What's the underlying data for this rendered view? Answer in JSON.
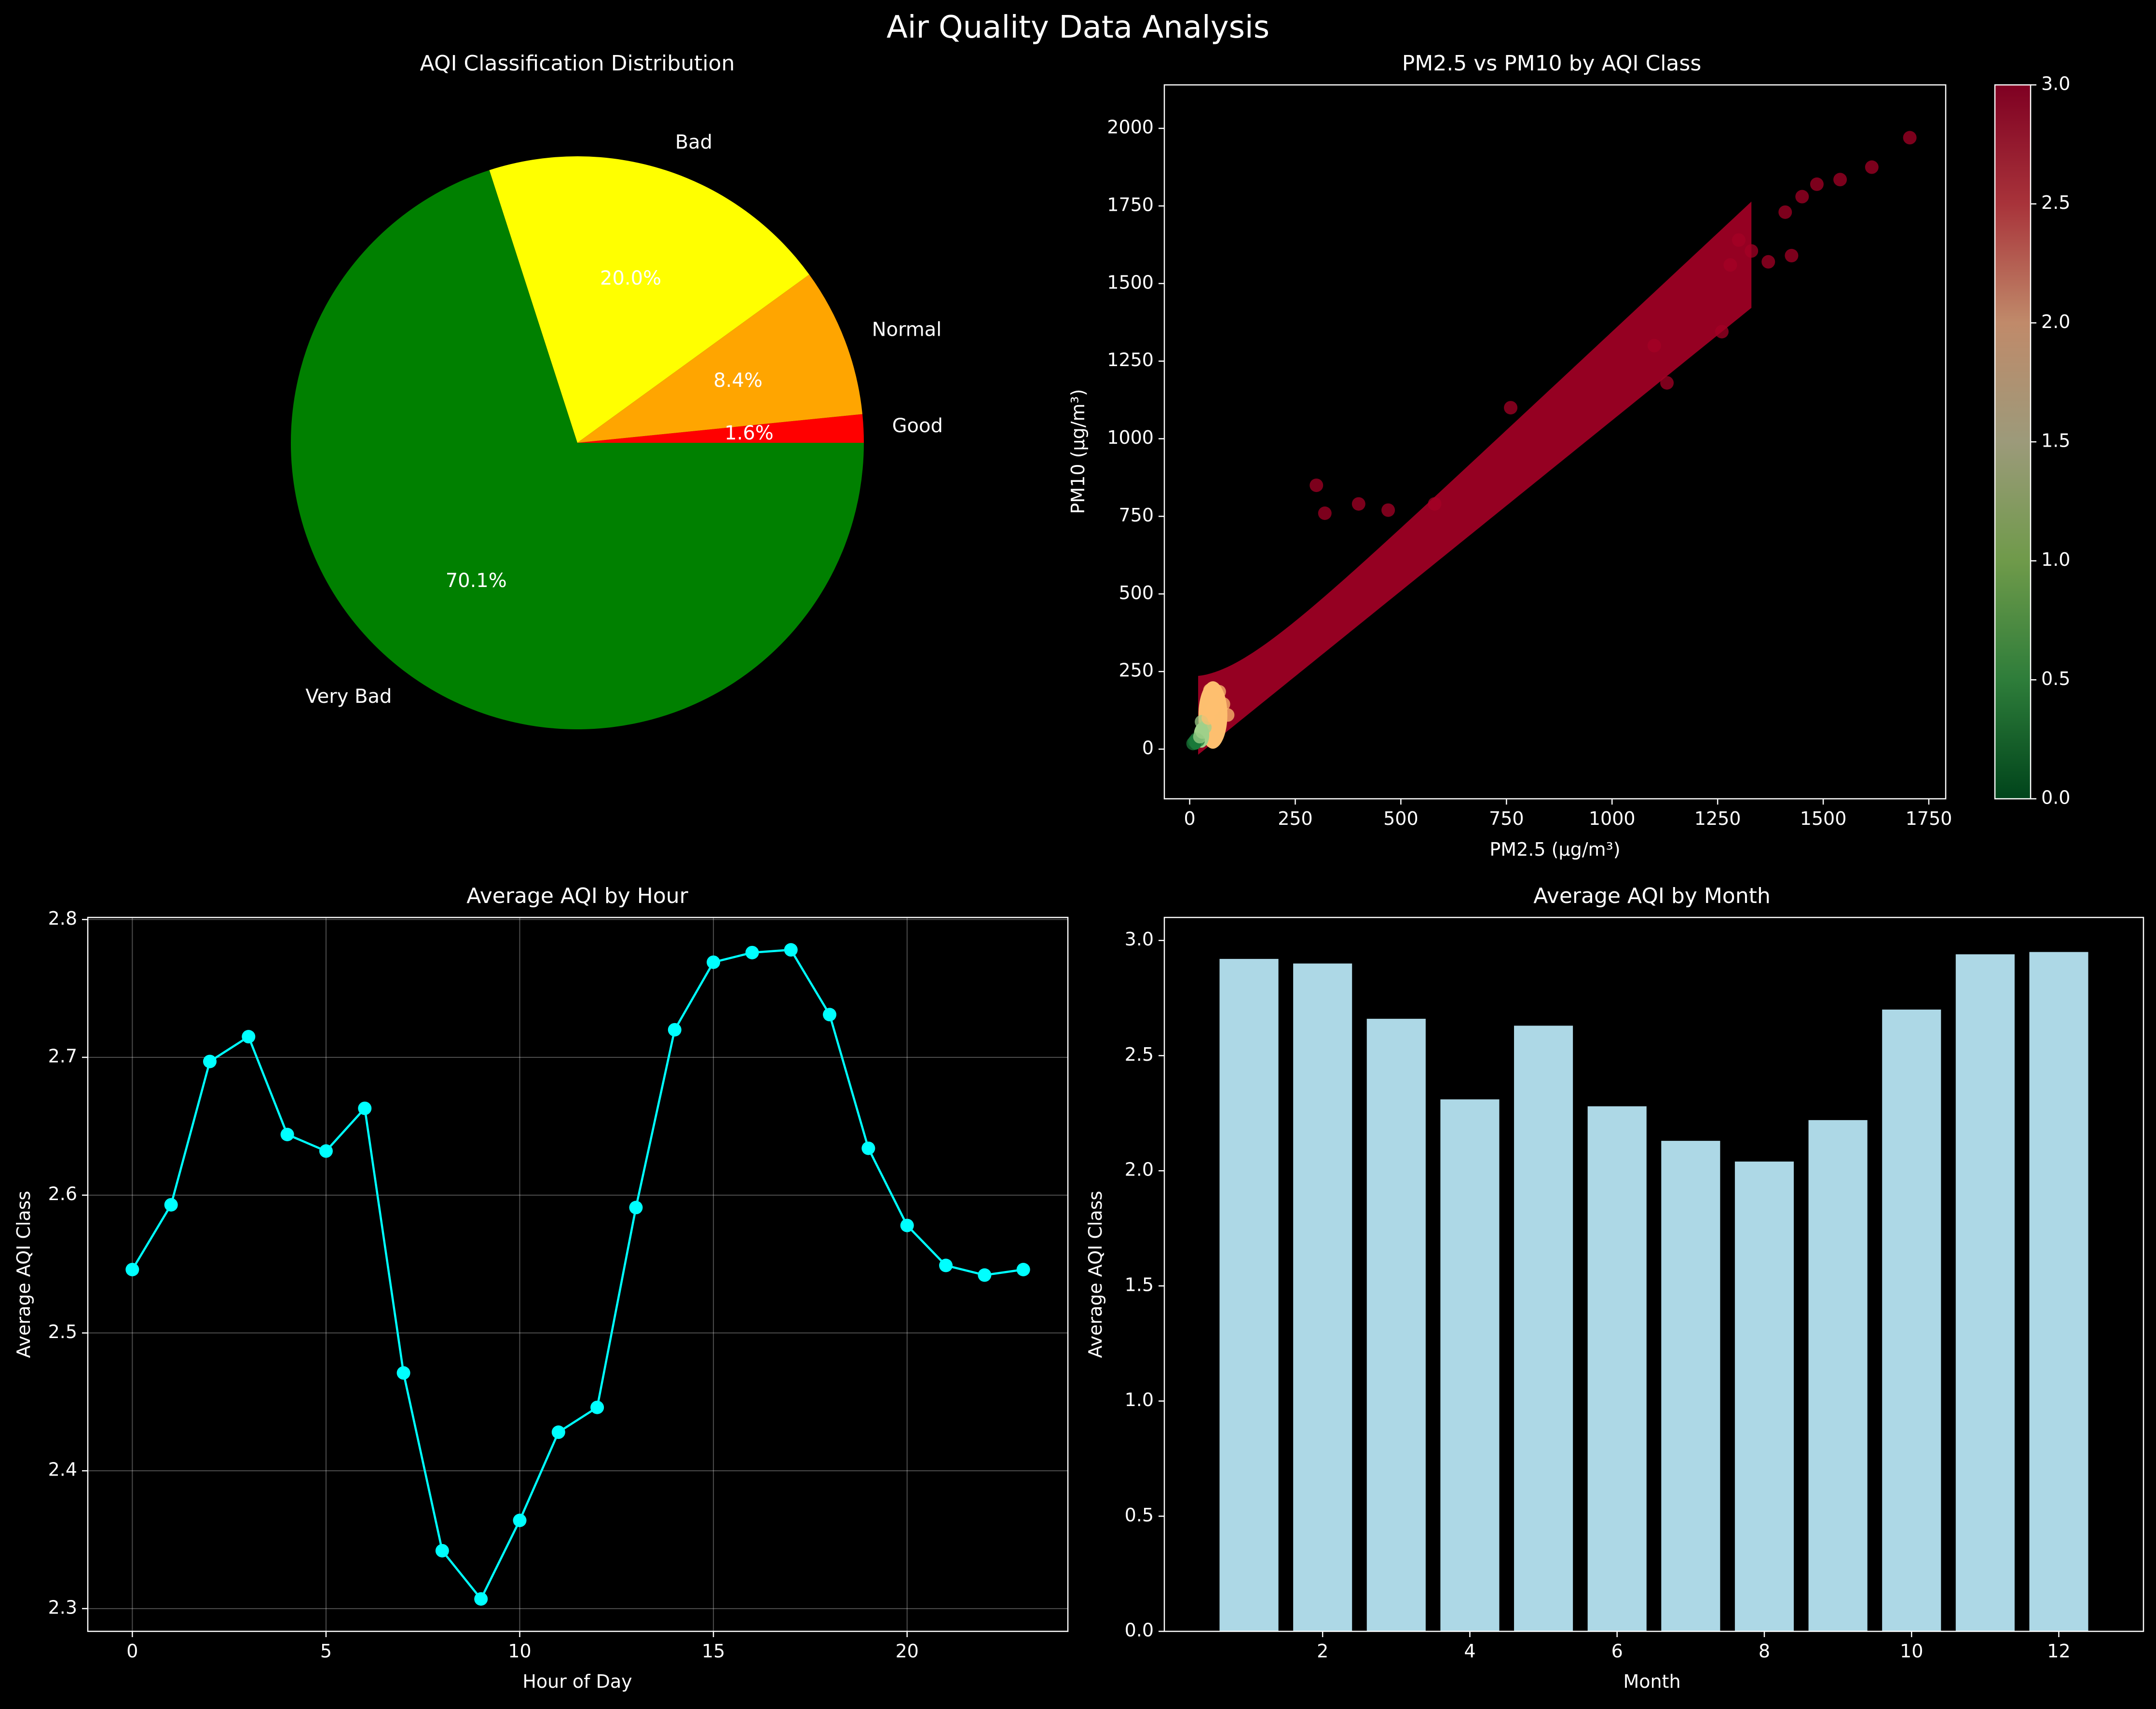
{
  "figure": {
    "title": "Air Quality Data Analysis",
    "background": "#000000",
    "foreground": "#ffffff"
  },
  "chart_data": [
    {
      "type": "pie",
      "title": "AQI Classification Distribution",
      "labels": [
        "Good",
        "Normal",
        "Bad",
        "Very Bad"
      ],
      "values": [
        1.6,
        8.4,
        20.0,
        70.1
      ],
      "pct_labels": [
        "1.6%",
        "8.4%",
        "20.0%",
        "70.1%"
      ],
      "colors": [
        "#ff0000",
        "#ffa500",
        "#ffff00",
        "#008000"
      ]
    },
    {
      "type": "scatter",
      "title": "PM2.5 vs PM10 by AQI Class",
      "xlabel": "PM2.5 (µg/m³)",
      "ylabel": "PM10 (µg/m³)",
      "xlim": [
        -60,
        1790
      ],
      "ylim": [
        -160,
        2140
      ],
      "xticks": [
        0,
        250,
        500,
        750,
        1000,
        1250,
        1500,
        1750
      ],
      "yticks": [
        0,
        250,
        500,
        750,
        1000,
        1250,
        1500,
        1750,
        2000
      ],
      "colorbar": {
        "range": [
          0,
          3
        ],
        "ticks": [
          "0.0",
          "0.5",
          "1.0",
          "1.5",
          "2.0",
          "2.5",
          "3.0"
        ],
        "colors": [
          "#00441b",
          "#2e7d3a",
          "#6f9a4a",
          "#9c9a7a",
          "#c08a6a",
          "#a8333a",
          "#7f0022"
        ]
      },
      "class_colors": {
        "0": "#1a7a3a",
        "1": "#9fd08a",
        "2": "#fdbf6f",
        "3": "#a50026"
      },
      "trend": {
        "slope": 1.18,
        "intercept": 25
      },
      "points": [
        {
          "x": 8,
          "y": 18,
          "c": 0
        },
        {
          "x": 12,
          "y": 25,
          "c": 0
        },
        {
          "x": 16,
          "y": 32,
          "c": 0
        },
        {
          "x": 20,
          "y": 28,
          "c": 0
        },
        {
          "x": 24,
          "y": 40,
          "c": 1
        },
        {
          "x": 30,
          "y": 55,
          "c": 1
        },
        {
          "x": 36,
          "y": 70,
          "c": 1
        },
        {
          "x": 28,
          "y": 88,
          "c": 1
        },
        {
          "x": 44,
          "y": 100,
          "c": 2
        },
        {
          "x": 55,
          "y": 130,
          "c": 2
        },
        {
          "x": 62,
          "y": 160,
          "c": 2
        },
        {
          "x": 70,
          "y": 185,
          "c": 2
        },
        {
          "x": 48,
          "y": 190,
          "c": 2
        },
        {
          "x": 80,
          "y": 145,
          "c": 2
        },
        {
          "x": 90,
          "y": 110,
          "c": 2
        },
        {
          "x": 1705,
          "y": 1970,
          "c": 3
        },
        {
          "x": 1615,
          "y": 1875,
          "c": 3
        },
        {
          "x": 1540,
          "y": 1835,
          "c": 3
        },
        {
          "x": 1485,
          "y": 1820,
          "c": 3
        },
        {
          "x": 1450,
          "y": 1780,
          "c": 3
        },
        {
          "x": 1410,
          "y": 1730,
          "c": 3
        },
        {
          "x": 1300,
          "y": 1640,
          "c": 3
        },
        {
          "x": 1330,
          "y": 1605,
          "c": 3
        },
        {
          "x": 1370,
          "y": 1570,
          "c": 3
        },
        {
          "x": 1425,
          "y": 1590,
          "c": 3
        },
        {
          "x": 1280,
          "y": 1560,
          "c": 3
        },
        {
          "x": 1260,
          "y": 1345,
          "c": 3
        },
        {
          "x": 1130,
          "y": 1180,
          "c": 3
        },
        {
          "x": 1100,
          "y": 1300,
          "c": 3
        },
        {
          "x": 760,
          "y": 1100,
          "c": 3
        },
        {
          "x": 400,
          "y": 790,
          "c": 3
        },
        {
          "x": 320,
          "y": 760,
          "c": 3
        },
        {
          "x": 300,
          "y": 850,
          "c": 3
        },
        {
          "x": 580,
          "y": 790,
          "c": 3
        },
        {
          "x": 470,
          "y": 770,
          "c": 3
        }
      ]
    },
    {
      "type": "line",
      "title": "Average AQI by Hour",
      "xlabel": "Hour of Day",
      "ylabel": "Average AQI Class",
      "x": [
        0,
        1,
        2,
        3,
        4,
        5,
        6,
        7,
        8,
        9,
        10,
        11,
        12,
        13,
        14,
        15,
        16,
        17,
        18,
        19,
        20,
        21,
        22,
        23
      ],
      "values": [
        2.546,
        2.593,
        2.697,
        2.715,
        2.644,
        2.632,
        2.663,
        2.471,
        2.342,
        2.307,
        2.364,
        2.428,
        2.446,
        2.591,
        2.72,
        2.769,
        2.776,
        2.778,
        2.731,
        2.634,
        2.578,
        2.549,
        2.542,
        2.546
      ],
      "xlim": [
        -1.15,
        24.15
      ],
      "ylim": [
        2.2835,
        2.8015
      ],
      "xticks": [
        0,
        5,
        10,
        15,
        20
      ],
      "yticks": [
        "2.3",
        "2.4",
        "2.5",
        "2.6",
        "2.7",
        "2.8"
      ],
      "color": "#00ffff",
      "grid": true
    },
    {
      "type": "bar",
      "title": "Average AQI by Month",
      "xlabel": "Month",
      "ylabel": "Average AQI Class",
      "categories": [
        1,
        2,
        3,
        4,
        5,
        6,
        7,
        8,
        9,
        10,
        11,
        12
      ],
      "values": [
        2.92,
        2.9,
        2.66,
        2.31,
        2.63,
        2.28,
        2.13,
        2.04,
        2.22,
        2.7,
        2.94,
        2.95
      ],
      "xlim": [
        -0.15,
        13.15
      ],
      "ylim": [
        0,
        3.1
      ],
      "xticks": [
        2,
        4,
        6,
        8,
        10,
        12
      ],
      "yticks": [
        "0.0",
        "0.5",
        "1.0",
        "1.5",
        "2.0",
        "2.5",
        "3.0"
      ],
      "color": "#add8e6"
    }
  ]
}
